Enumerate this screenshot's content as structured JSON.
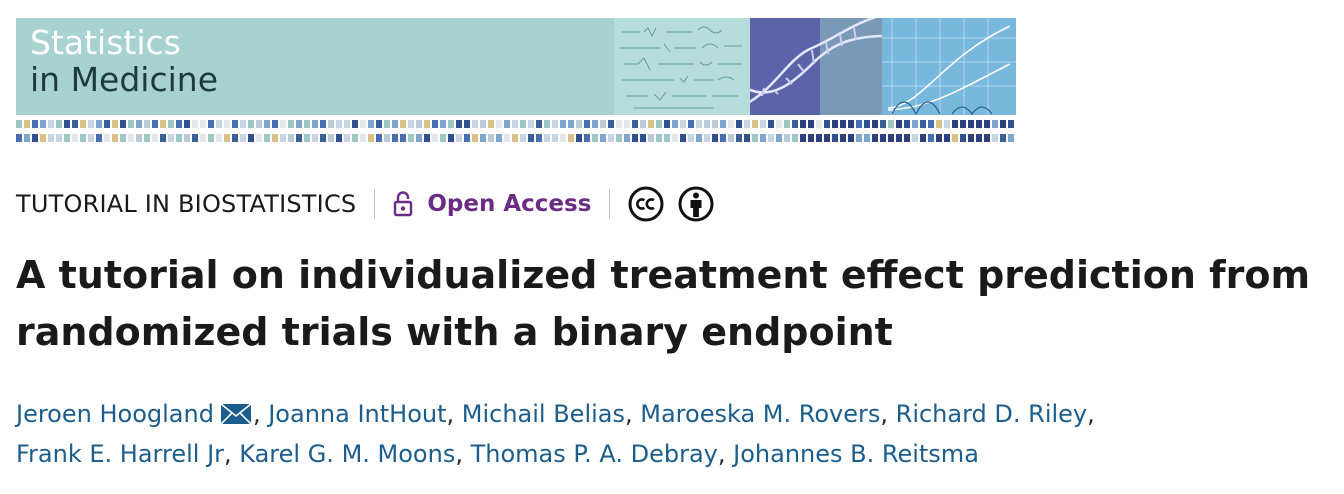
{
  "journal": {
    "name_line1": "Statistics",
    "name_line2": "in Medicine"
  },
  "meta": {
    "section": "TUTORIAL IN BIOSTATISTICS",
    "access_label": "Open Access",
    "license_icons": [
      "creative-commons-icon",
      "attribution-icon"
    ]
  },
  "article": {
    "title_line1": "A tutorial on individualized treatment effect prediction from",
    "title_line2": "randomized trials with a binary endpoint"
  },
  "authors": [
    "Jeroen Hoogland",
    "Joanna IntHout",
    "Michail Belias",
    "Maroeska M. Rovers",
    "Richard D. Riley",
    "Frank E. Harrell Jr",
    "Karel G. M. Moons",
    "Thomas P. A. Debray",
    "Johannes B. Reitsma"
  ],
  "colors": {
    "banner": "#a7d2cf",
    "open_access": "#6b2c84",
    "author_link": "#1c5d8c"
  }
}
